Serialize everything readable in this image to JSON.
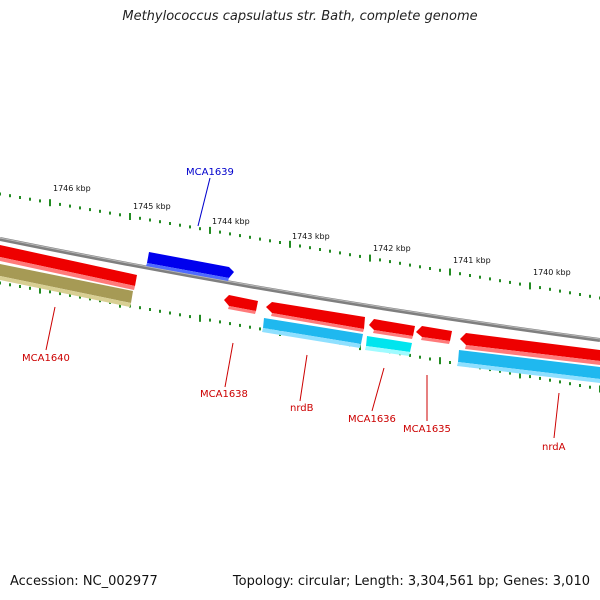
{
  "title": "Methylococcus capsulatus str. Bath, complete genome",
  "footer": {
    "accession": "Accession: NC_002977",
    "topology": "Topology: circular; Length: 3,304,561 bp; Genes: 3,010"
  },
  "ruler": {
    "unit": "kbp",
    "ticks": [
      {
        "label": "1746 kbp"
      },
      {
        "label": "1745 kbp"
      },
      {
        "label": "1744 kbp"
      },
      {
        "label": "1743 kbp"
      },
      {
        "label": "1742 kbp"
      },
      {
        "label": "1741 kbp"
      },
      {
        "label": "1740 kbp"
      }
    ]
  },
  "colors": {
    "backbone": "#808080",
    "cds_forward": "#0000ff",
    "cds_reverse": "#ff0000",
    "gene_reverse": "#00bfff",
    "other_reverse": "#00ffff",
    "pseudo": "#b5aa6a",
    "tick": "#228b22",
    "label_forward": "#0000cc",
    "label_reverse": "#cc0000"
  },
  "features": [
    {
      "label": "MCA1639",
      "strand": "forward"
    },
    {
      "label": "MCA1640",
      "strand": "reverse"
    },
    {
      "label": "MCA1638",
      "strand": "reverse"
    },
    {
      "label": "nrdB",
      "strand": "reverse"
    },
    {
      "label": "MCA1636",
      "strand": "reverse"
    },
    {
      "label": "MCA1635",
      "strand": "reverse"
    },
    {
      "label": "nrdA",
      "strand": "reverse"
    }
  ]
}
